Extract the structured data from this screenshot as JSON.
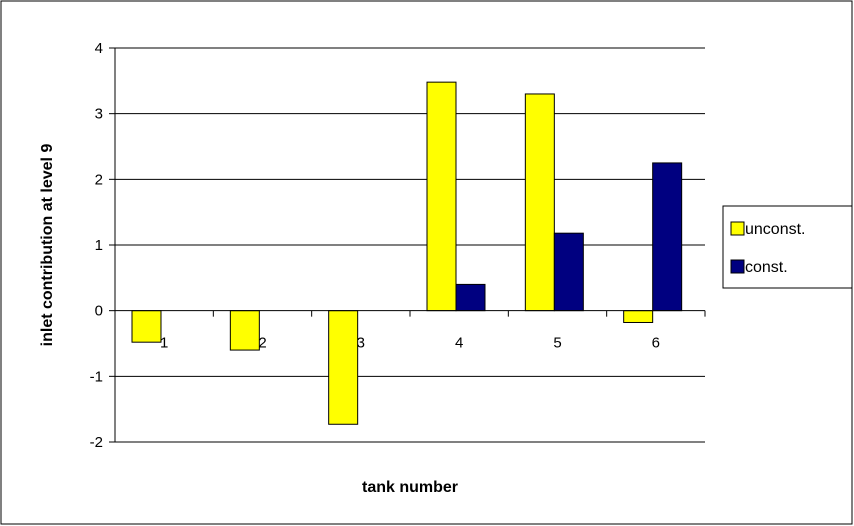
{
  "chart_data": {
    "type": "bar",
    "categories": [
      "1",
      "2",
      "3",
      "4",
      "5",
      "6"
    ],
    "series": [
      {
        "name": "unconst.",
        "values": [
          -0.48,
          -0.6,
          -1.73,
          3.48,
          3.3,
          -0.18
        ],
        "color": "#ffff00"
      },
      {
        "name": "const.",
        "values": [
          0,
          0,
          0,
          0.4,
          1.18,
          2.25
        ],
        "color": "#000080"
      }
    ],
    "title": "",
    "xlabel": "tank number",
    "ylabel": "inlet contribution at level 9",
    "ylim": [
      -2,
      4
    ],
    "yticks": [
      "-2",
      "-1",
      "0",
      "1",
      "2",
      "3",
      "4"
    ],
    "grid": true,
    "legend_position": "right"
  }
}
